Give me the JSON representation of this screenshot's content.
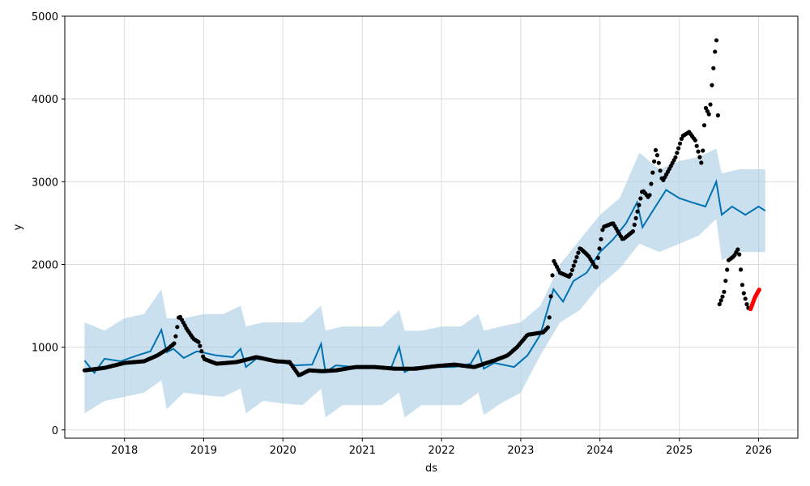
{
  "chart_data": {
    "type": "scatter",
    "xlabel": "ds",
    "ylabel": "y",
    "xlim": [
      "2017-04-01",
      "2026-07-01"
    ],
    "ylim": [
      -100,
      5000
    ],
    "x_ticks": [
      "2018",
      "2019",
      "2020",
      "2021",
      "2022",
      "2023",
      "2024",
      "2025",
      "2026"
    ],
    "y_ticks": [
      0,
      1000,
      2000,
      3000,
      4000,
      5000
    ],
    "grid": true,
    "colors": {
      "history_points": "#000000",
      "recent_points": "#ff0000",
      "forecast_line": "#0072b2",
      "uncertainty_band": "#a6cbe3"
    },
    "observed_series": {
      "x": [
        "2017-07-01",
        "2017-10-01",
        "2018-01-01",
        "2018-04-01",
        "2018-06-01",
        "2018-07-20",
        "2018-08-20",
        "2018-09-10",
        "2018-10-15",
        "2018-11-15",
        "2018-12-10",
        "2019-01-01",
        "2019-03-01",
        "2019-06-01",
        "2019-09-01",
        "2019-12-01",
        "2020-02-01",
        "2020-03-15",
        "2020-05-01",
        "2020-07-01",
        "2020-09-01",
        "2020-12-01",
        "2021-03-01",
        "2021-06-01",
        "2021-09-01",
        "2021-12-01",
        "2022-03-01",
        "2022-06-01",
        "2022-09-01",
        "2022-11-01",
        "2022-12-15",
        "2023-02-01",
        "2023-04-15",
        "2023-05-10",
        "2023-06-01",
        "2023-07-01",
        "2023-08-15",
        "2023-10-01",
        "2023-11-10",
        "2023-12-15",
        "2024-01-15",
        "2024-03-01",
        "2024-04-15",
        "2024-06-01",
        "2024-07-15",
        "2024-08-15",
        "2024-09-15",
        "2024-10-15",
        "2024-11-15",
        "2024-12-15",
        "2025-01-15",
        "2025-02-15",
        "2025-03-15",
        "2025-04-15",
        "2025-05-01",
        "2025-05-20",
        "2025-06-01",
        "2025-06-15",
        "2025-06-25",
        "2025-07-05",
        "2025-07-25",
        "2025-08-15",
        "2025-09-10",
        "2025-10-01",
        "2025-10-20",
        "2025-11-10",
        "2025-11-20"
      ],
      "y": [
        720,
        750,
        810,
        830,
        900,
        980,
        1050,
        1390,
        1220,
        1100,
        1060,
        860,
        800,
        820,
        880,
        830,
        820,
        660,
        720,
        710,
        720,
        760,
        760,
        740,
        740,
        770,
        790,
        760,
        840,
        900,
        1000,
        1150,
        1180,
        1250,
        2050,
        1900,
        1850,
        2200,
        2100,
        1950,
        2450,
        2500,
        2300,
        2400,
        2900,
        2800,
        3400,
        3000,
        3150,
        3300,
        3550,
        3600,
        3500,
        3200,
        3900,
        3800,
        4200,
        4600,
        4780,
        1520,
        1650,
        2050,
        2100,
        2200,
        1700,
        1500,
        1450
      ]
    },
    "recent_series": {
      "x": [
        "2025-11-25",
        "2025-12-05",
        "2025-12-15",
        "2025-12-25",
        "2026-01-05"
      ],
      "y": [
        1460,
        1530,
        1600,
        1650,
        1700
      ]
    },
    "forecast_series": {
      "x": [
        "2017-07-01",
        "2017-08-15",
        "2017-10-01",
        "2017-12-15",
        "2018-03-01",
        "2018-05-01",
        "2018-06-20",
        "2018-07-15",
        "2018-08-15",
        "2018-10-01",
        "2018-12-01",
        "2019-03-01",
        "2019-05-15",
        "2019-06-20",
        "2019-07-15",
        "2019-09-01",
        "2019-12-01",
        "2020-03-01",
        "2020-05-15",
        "2020-06-25",
        "2020-07-15",
        "2020-09-01",
        "2020-12-01",
        "2021-03-01",
        "2021-05-15",
        "2021-06-20",
        "2021-07-15",
        "2021-09-01",
        "2021-12-01",
        "2022-03-01",
        "2022-05-15",
        "2022-06-20",
        "2022-07-15",
        "2022-09-01",
        "2022-12-01",
        "2023-02-01",
        "2023-04-01",
        "2023-06-01",
        "2023-07-15",
        "2023-09-01",
        "2023-11-01",
        "2024-01-01",
        "2024-03-01",
        "2024-05-01",
        "2024-06-20",
        "2024-07-15",
        "2024-09-01",
        "2024-11-01",
        "2025-01-01",
        "2025-03-01",
        "2025-05-01",
        "2025-06-20",
        "2025-07-15",
        "2025-09-01",
        "2025-11-01",
        "2026-01-01",
        "2026-02-01"
      ],
      "y": [
        840,
        690,
        860,
        830,
        900,
        950,
        1210,
        940,
        980,
        870,
        950,
        900,
        880,
        980,
        760,
        860,
        830,
        780,
        790,
        1040,
        700,
        780,
        760,
        760,
        760,
        1000,
        700,
        760,
        760,
        760,
        800,
        960,
        740,
        810,
        760,
        900,
        1150,
        1700,
        1550,
        1800,
        1900,
        2150,
        2300,
        2500,
        2750,
        2450,
        2650,
        2900,
        2800,
        2750,
        2700,
        3000,
        2600,
        2700,
        2600,
        2700,
        2650
      ]
    },
    "uncertainty_band": {
      "x": [
        "2017-07-01",
        "2017-10-01",
        "2018-01-01",
        "2018-04-01",
        "2018-06-20",
        "2018-07-15",
        "2018-10-01",
        "2019-01-01",
        "2019-04-01",
        "2019-06-20",
        "2019-07-15",
        "2019-10-01",
        "2020-01-01",
        "2020-04-01",
        "2020-06-25",
        "2020-07-15",
        "2020-10-01",
        "2021-01-01",
        "2021-04-01",
        "2021-06-20",
        "2021-07-15",
        "2021-10-01",
        "2022-01-01",
        "2022-04-01",
        "2022-06-20",
        "2022-07-15",
        "2022-10-01",
        "2023-01-01",
        "2023-04-01",
        "2023-07-01",
        "2023-10-01",
        "2024-01-01",
        "2024-04-01",
        "2024-07-01",
        "2024-10-01",
        "2025-01-01",
        "2025-04-01",
        "2025-06-20",
        "2025-07-15",
        "2025-10-01",
        "2026-01-01",
        "2026-02-01"
      ],
      "lower": [
        200,
        350,
        400,
        450,
        600,
        250,
        450,
        420,
        400,
        500,
        200,
        350,
        320,
        300,
        500,
        150,
        300,
        300,
        300,
        450,
        150,
        300,
        300,
        300,
        450,
        180,
        320,
        450,
        900,
        1300,
        1450,
        1750,
        1950,
        2250,
        2150,
        2250,
        2350,
        2550,
        2050,
        2150,
        2150,
        2150
      ],
      "upper": [
        1300,
        1200,
        1350,
        1400,
        1700,
        1350,
        1350,
        1400,
        1400,
        1500,
        1250,
        1300,
        1300,
        1300,
        1500,
        1200,
        1250,
        1250,
        1250,
        1450,
        1200,
        1200,
        1250,
        1250,
        1400,
        1200,
        1250,
        1300,
        1500,
        2000,
        2300,
        2600,
        2800,
        3350,
        3150,
        3250,
        3300,
        3400,
        3100,
        3150,
        3150,
        3150
      ]
    }
  }
}
